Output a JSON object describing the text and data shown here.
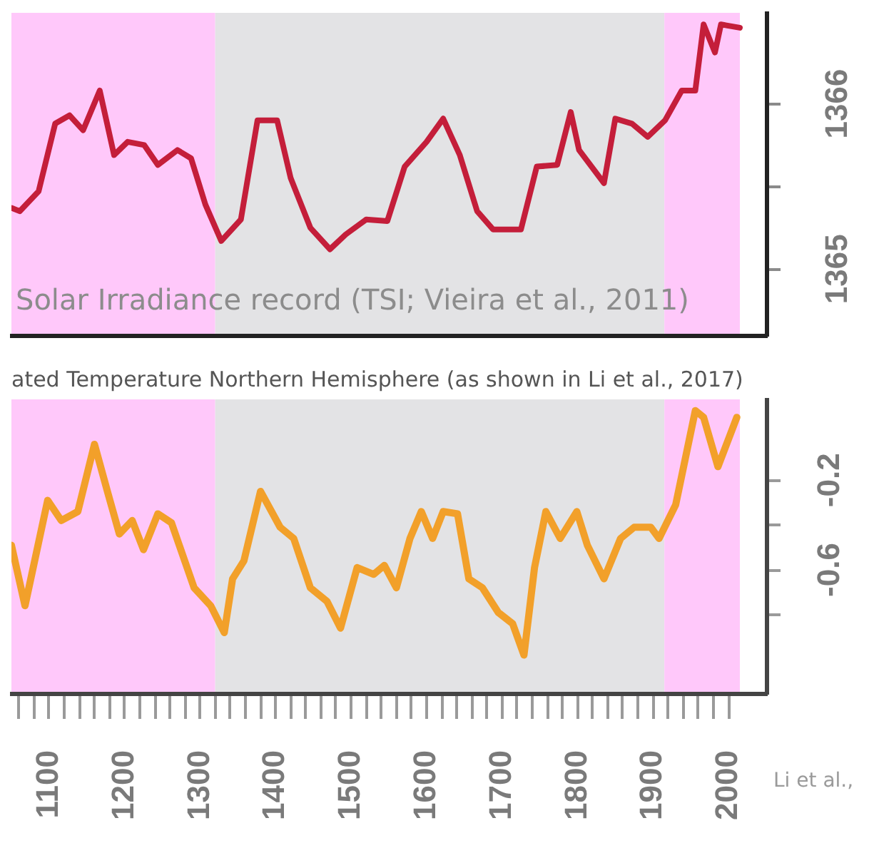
{
  "chart_data": [
    {
      "type": "line",
      "annotations": [
        "Solar Irradiance record (TSI; Vieira et al., 2011)"
      ],
      "x": [
        1050,
        1061,
        1086,
        1108,
        1127,
        1145,
        1167,
        1186,
        1204,
        1226,
        1244,
        1270,
        1288,
        1307,
        1328,
        1354,
        1376,
        1402,
        1420,
        1446,
        1472,
        1493,
        1520,
        1548,
        1571,
        1600,
        1622,
        1644,
        1667,
        1688,
        1725,
        1746,
        1773,
        1791,
        1802,
        1835,
        1850,
        1872,
        1893,
        1916,
        1938,
        1956,
        1967,
        1982,
        1990,
        2015
      ],
      "series": [
        {
          "color": "#c41e3a",
          "values": [
            1365.37,
            1365.35,
            1365.47,
            1365.88,
            1365.93,
            1365.84,
            1366.08,
            1365.69,
            1365.77,
            1365.75,
            1365.63,
            1365.72,
            1365.67,
            1365.39,
            1365.17,
            1365.3,
            1365.9,
            1365.9,
            1365.55,
            1365.25,
            1365.12,
            1365.21,
            1365.3,
            1365.29,
            1365.62,
            1365.77,
            1365.91,
            1365.69,
            1365.35,
            1365.24,
            1365.24,
            1365.62,
            1365.63,
            1365.95,
            1365.72,
            1365.52,
            1365.91,
            1365.88,
            1365.8,
            1365.9,
            1366.08,
            1366.08,
            1366.48,
            1366.31,
            1366.48,
            1366.46
          ]
        }
      ],
      "xlim": [
        1050,
        2050
      ],
      "ylim": [
        1364.6,
        1366.55
      ],
      "yticks": [
        1365,
        {
          "value": 1365.5,
          "label": null
        },
        1366
      ],
      "bands": [
        {
          "axis": "x",
          "from": 1050,
          "to": 1320,
          "color": "#ffc8fa"
        },
        {
          "axis": "x",
          "from": 1320,
          "to": 1915,
          "color": "#e3e3e5"
        },
        {
          "axis": "x",
          "from": 1915,
          "to": 2015,
          "color": "#ffc8fa"
        }
      ],
      "tick_labels": "y",
      "marker": "none",
      "line_style": "solid"
    },
    {
      "type": "line",
      "title": "ated Temperature Northern Hemisphere (as shown in Li et al., 2017)",
      "annotations": [
        "Li et al.,"
      ],
      "x": [
        1050,
        1068,
        1098,
        1116,
        1138,
        1160,
        1178,
        1193,
        1210,
        1225,
        1244,
        1262,
        1292,
        1314,
        1332,
        1343,
        1358,
        1380,
        1406,
        1424,
        1446,
        1468,
        1486,
        1508,
        1530,
        1544,
        1560,
        1578,
        1593,
        1608,
        1622,
        1641,
        1656,
        1674,
        1695,
        1714,
        1729,
        1743,
        1758,
        1777,
        1799,
        1813,
        1835,
        1857,
        1875,
        1897,
        1908,
        1930,
        1956,
        1967,
        1986,
        2011
      ],
      "series": [
        {
          "color": "#f2a02a",
          "values": [
            -0.49,
            -0.76,
            -0.29,
            -0.38,
            -0.34,
            -0.04,
            -0.26,
            -0.44,
            -0.38,
            -0.51,
            -0.35,
            -0.39,
            -0.68,
            -0.76,
            -0.88,
            -0.64,
            -0.56,
            -0.25,
            -0.41,
            -0.46,
            -0.68,
            -0.74,
            -0.86,
            -0.59,
            -0.62,
            -0.58,
            -0.68,
            -0.46,
            -0.34,
            -0.46,
            -0.34,
            -0.35,
            -0.64,
            -0.68,
            -0.79,
            -0.84,
            -0.98,
            -0.59,
            -0.34,
            -0.46,
            -0.34,
            -0.49,
            -0.64,
            -0.46,
            -0.41,
            -0.41,
            -0.46,
            -0.31,
            0.11,
            0.08,
            -0.14,
            0.08
          ]
        }
      ],
      "xlim": [
        1050,
        2050
      ],
      "xticks": [
        {
          "value": 1060,
          "label": null
        },
        {
          "value": 1080,
          "label": null
        },
        1100,
        {
          "value": 1120,
          "label": null
        },
        {
          "value": 1140,
          "label": null
        },
        {
          "value": 1160,
          "label": null
        },
        {
          "value": 1180,
          "label": null
        },
        1200,
        {
          "value": 1220,
          "label": null
        },
        {
          "value": 1240,
          "label": null
        },
        {
          "value": 1260,
          "label": null
        },
        {
          "value": 1280,
          "label": null
        },
        1300,
        {
          "value": 1320,
          "label": null
        },
        {
          "value": 1340,
          "label": null
        },
        {
          "value": 1360,
          "label": null
        },
        {
          "value": 1380,
          "label": null
        },
        1400,
        {
          "value": 1420,
          "label": null
        },
        {
          "value": 1440,
          "label": null
        },
        {
          "value": 1460,
          "label": null
        },
        {
          "value": 1480,
          "label": null
        },
        1500,
        {
          "value": 1520,
          "label": null
        },
        {
          "value": 1540,
          "label": null
        },
        {
          "value": 1560,
          "label": null
        },
        {
          "value": 1580,
          "label": null
        },
        1600,
        {
          "value": 1620,
          "label": null
        },
        {
          "value": 1640,
          "label": null
        },
        {
          "value": 1660,
          "label": null
        },
        {
          "value": 1680,
          "label": null
        },
        1700,
        {
          "value": 1720,
          "label": null
        },
        {
          "value": 1740,
          "label": null
        },
        {
          "value": 1760,
          "label": null
        },
        {
          "value": 1780,
          "label": null
        },
        1800,
        {
          "value": 1820,
          "label": null
        },
        {
          "value": 1840,
          "label": null
        },
        {
          "value": 1860,
          "label": null
        },
        {
          "value": 1880,
          "label": null
        },
        1900,
        {
          "value": 1920,
          "label": null
        },
        {
          "value": 1940,
          "label": null
        },
        {
          "value": 1960,
          "label": null
        },
        {
          "value": 1980,
          "label": null
        },
        2000
      ],
      "ylim": [
        -1.15,
        0.16
      ],
      "yticks": [
        {
          "value": -0.8,
          "label": null
        },
        -0.6,
        {
          "value": -0.4,
          "label": null
        },
        -0.2
      ],
      "bands": [
        {
          "axis": "x",
          "from": 1050,
          "to": 1320,
          "color": "#ffc8fa"
        },
        {
          "axis": "x",
          "from": 1320,
          "to": 1915,
          "color": "#e3e3e5"
        },
        {
          "axis": "x",
          "from": 1915,
          "to": 2015,
          "color": "#ffc8fa"
        }
      ],
      "marker": "none",
      "line_style": "solid"
    }
  ]
}
